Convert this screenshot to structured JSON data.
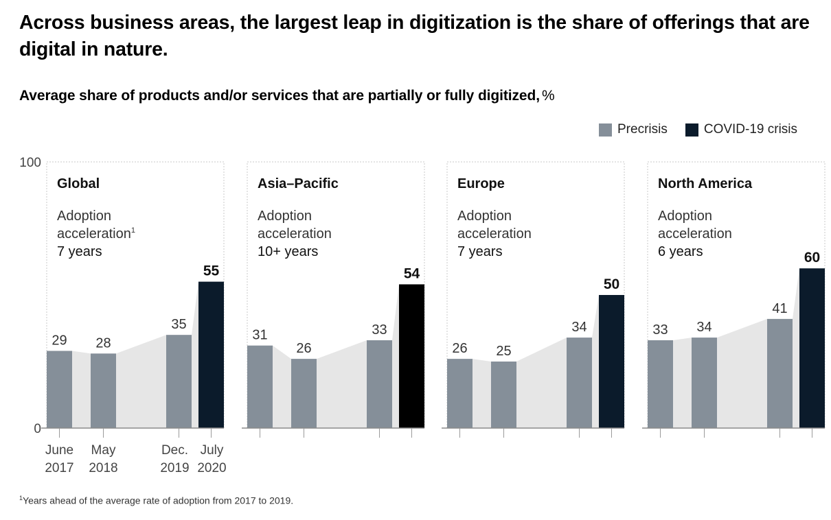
{
  "headline": "Across business areas, the largest leap in digitization is the share of offerings that are digital in nature.",
  "subtitle": "Average share of products and/or services that are partially or fully digitized,",
  "subtitle_unit": "%",
  "legend": [
    {
      "label": "Precrisis",
      "color": "#858f99"
    },
    {
      "label": "COVID-19 crisis",
      "color": "#0b1b2b"
    }
  ],
  "footnote": {
    "marker": "1",
    "text": "Years ahead of the average rate of adoption from 2017 to 2019."
  },
  "chart_data": {
    "type": "bar",
    "ylim": [
      0,
      100
    ],
    "y_ticks": [
      "0",
      "100"
    ],
    "categories": [
      {
        "line1": "June",
        "line2": "2017"
      },
      {
        "line1": "May",
        "line2": "2018"
      },
      {
        "line1": "Dec.",
        "line2": "2019"
      },
      {
        "line1": "July",
        "line2": "2020"
      }
    ],
    "colors": {
      "precrisis": "#858f99",
      "crisis": "#0b1b2b",
      "crisis_highlight": "#000000",
      "area": "#e6e6e6"
    },
    "panels": [
      {
        "region": "Global",
        "adoption_label_1": "Adoption",
        "adoption_label_2": "acceleration",
        "footnote_marker": "1",
        "years": "7 years",
        "values": [
          29,
          28,
          35,
          55
        ]
      },
      {
        "region": "Asia–Pacific",
        "adoption_label_1": "Adoption",
        "adoption_label_2": "acceleration",
        "footnote_marker": "",
        "years": "10+ years",
        "values": [
          31,
          26,
          33,
          54
        ]
      },
      {
        "region": "Europe",
        "adoption_label_1": "Adoption",
        "adoption_label_2": "acceleration",
        "footnote_marker": "",
        "years": "7 years",
        "values": [
          26,
          25,
          34,
          50
        ]
      },
      {
        "region": "North America",
        "adoption_label_1": "Adoption",
        "adoption_label_2": "acceleration",
        "footnote_marker": "",
        "years": "6 years",
        "values": [
          33,
          34,
          41,
          60
        ]
      }
    ]
  }
}
